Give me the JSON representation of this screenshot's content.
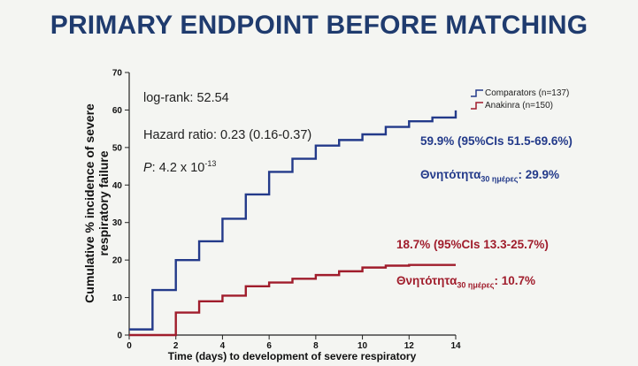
{
  "title": "PRIMARY ENDPOINT BEFORE MATCHING",
  "stats": {
    "log_rank": "log-rank: 52.54",
    "hazard_ratio": "Hazard ratio: 0.23 (0.16-0.37)",
    "p_prefix": "P",
    "p_value": ": 4.2 x 10",
    "p_exp": "-13"
  },
  "annotations": {
    "blue_ci": "59.9% (95%CIs 51.5-69.6%)",
    "blue_mort_label": "Θνητότητα",
    "blue_mort_sub": "30 ημέρες",
    "blue_mort_value": ": 29.9%",
    "red_ci": "18.7% (95%CIs 13.3-25.7%)",
    "red_mort_label": "Θνητότητα",
    "red_mort_sub": "30 ημέρες",
    "red_mort_value": ": 10.7%"
  },
  "colors": {
    "comparators": "#233a8a",
    "anakinra": "#a01d2c",
    "title": "#1f3b6e"
  },
  "chart_data": {
    "type": "line",
    "step": true,
    "title": "PRIMARY ENDPOINT BEFORE MATCHING",
    "xlabel": "Time (days) to development of severe respiratory",
    "ylabel": "Cumulative % incidence of severe respiratory failure",
    "xlim": [
      0,
      14
    ],
    "ylim": [
      0,
      70
    ],
    "xticks": [
      0,
      2,
      4,
      6,
      8,
      10,
      12,
      14
    ],
    "yticks": [
      0,
      10,
      20,
      30,
      40,
      50,
      60,
      70
    ],
    "legend": "top-right",
    "series": [
      {
        "name": "Comparators (n=137)",
        "x": [
          0,
          1,
          2,
          3,
          4,
          5,
          6,
          7,
          8,
          9,
          10,
          11,
          12,
          13,
          14
        ],
        "y": [
          1.5,
          12,
          20,
          25,
          31,
          37.5,
          43.5,
          47,
          50.5,
          52,
          53.5,
          55.5,
          57,
          58,
          59.9
        ]
      },
      {
        "name": "Anakinra (n=150)",
        "x": [
          0,
          1,
          2,
          3,
          4,
          5,
          6,
          7,
          8,
          9,
          10,
          11,
          12,
          13,
          14
        ],
        "y": [
          0,
          0,
          6,
          9,
          10.5,
          13,
          14,
          15,
          16,
          17,
          18,
          18.5,
          18.7,
          18.7,
          18.7
        ]
      }
    ]
  }
}
